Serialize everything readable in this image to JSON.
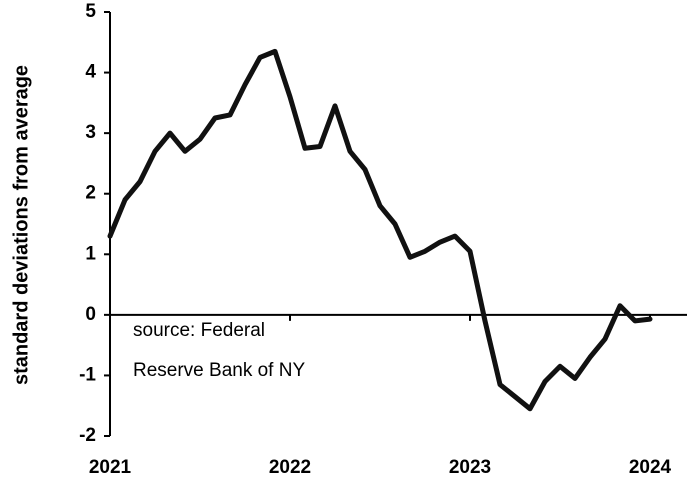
{
  "chart_data": {
    "type": "line",
    "y_label": "standard deviations from average",
    "annotations": [
      "source: Federal",
      "Reserve Bank of NY"
    ],
    "categories": [
      "2021",
      null,
      null,
      null,
      null,
      null,
      null,
      null,
      null,
      null,
      null,
      null,
      "2022",
      null,
      null,
      null,
      null,
      null,
      null,
      null,
      null,
      null,
      null,
      null,
      "2023",
      null,
      null,
      null,
      null,
      null,
      null,
      null,
      null,
      null,
      null,
      null,
      "2024"
    ],
    "values": [
      1.3,
      1.9,
      2.2,
      2.7,
      3.0,
      2.7,
      2.9,
      3.25,
      3.3,
      3.8,
      4.25,
      4.35,
      3.6,
      2.75,
      2.78,
      3.45,
      2.7,
      2.4,
      1.8,
      1.5,
      0.95,
      1.05,
      1.2,
      1.3,
      1.05,
      -0.1,
      -1.15,
      -1.35,
      -1.55,
      -1.1,
      -0.85,
      -1.05,
      -0.7,
      -0.4,
      0.15,
      -0.1,
      -0.07
    ],
    "color": "#111111",
    "ylim": [
      -2,
      5
    ],
    "yticks": [
      -2,
      -1,
      0,
      1,
      2,
      3,
      4,
      5
    ]
  }
}
